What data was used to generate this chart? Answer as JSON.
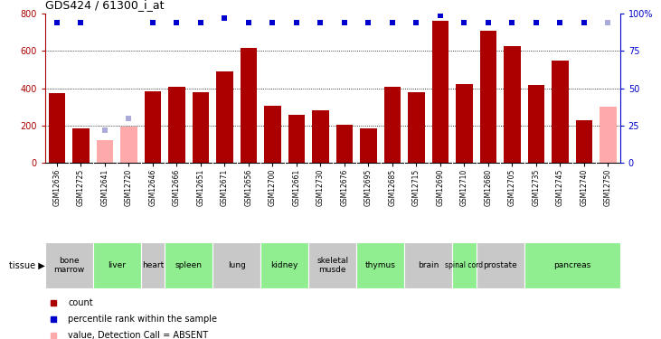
{
  "title": "GDS424 / 61300_i_at",
  "samples": [
    "GSM12636",
    "GSM12725",
    "GSM12641",
    "GSM12720",
    "GSM12646",
    "GSM12666",
    "GSM12651",
    "GSM12671",
    "GSM12656",
    "GSM12700",
    "GSM12661",
    "GSM12730",
    "GSM12676",
    "GSM12695",
    "GSM12685",
    "GSM12715",
    "GSM12690",
    "GSM12710",
    "GSM12680",
    "GSM12705",
    "GSM12735",
    "GSM12745",
    "GSM12740",
    "GSM12750"
  ],
  "counts": [
    375,
    185,
    120,
    195,
    385,
    405,
    380,
    490,
    615,
    305,
    255,
    280,
    205,
    185,
    405,
    380,
    760,
    420,
    710,
    625,
    415,
    550,
    230,
    300
  ],
  "absent": [
    false,
    false,
    true,
    true,
    false,
    false,
    false,
    false,
    false,
    false,
    false,
    false,
    false,
    false,
    false,
    false,
    false,
    false,
    false,
    false,
    false,
    false,
    false,
    true
  ],
  "percentile": [
    94,
    94,
    22,
    30,
    94,
    94,
    94,
    97,
    94,
    94,
    94,
    94,
    94,
    94,
    94,
    94,
    99,
    94,
    94,
    94,
    94,
    94,
    94,
    94
  ],
  "tissues": [
    {
      "name": "bone\nmarrow",
      "start": 0,
      "end": 2,
      "color": "#c8c8c8"
    },
    {
      "name": "liver",
      "start": 2,
      "end": 4,
      "color": "#90ee90"
    },
    {
      "name": "heart",
      "start": 4,
      "end": 5,
      "color": "#c8c8c8"
    },
    {
      "name": "spleen",
      "start": 5,
      "end": 7,
      "color": "#90ee90"
    },
    {
      "name": "lung",
      "start": 7,
      "end": 9,
      "color": "#c8c8c8"
    },
    {
      "name": "kidney",
      "start": 9,
      "end": 11,
      "color": "#90ee90"
    },
    {
      "name": "skeletal\nmusde",
      "start": 11,
      "end": 13,
      "color": "#c8c8c8"
    },
    {
      "name": "thymus",
      "start": 13,
      "end": 15,
      "color": "#90ee90"
    },
    {
      "name": "brain",
      "start": 15,
      "end": 17,
      "color": "#c8c8c8"
    },
    {
      "name": "spinal cord",
      "start": 17,
      "end": 18,
      "color": "#90ee90"
    },
    {
      "name": "prostate",
      "start": 18,
      "end": 20,
      "color": "#c8c8c8"
    },
    {
      "name": "pancreas",
      "start": 20,
      "end": 24,
      "color": "#90ee90"
    }
  ],
  "bar_color_present": "#aa0000",
  "bar_color_absent": "#ffaaaa",
  "dot_color_present": "#0000cc",
  "dot_color_absent": "#aaaadd",
  "ylim": [
    0,
    800
  ],
  "yticks_left": [
    0,
    200,
    400,
    600,
    800
  ],
  "yticks_right": [
    0,
    25,
    50,
    75,
    100
  ],
  "ytick_labels_right": [
    "0",
    "25",
    "50",
    "75",
    "100%"
  ],
  "background_color": "#ffffff"
}
